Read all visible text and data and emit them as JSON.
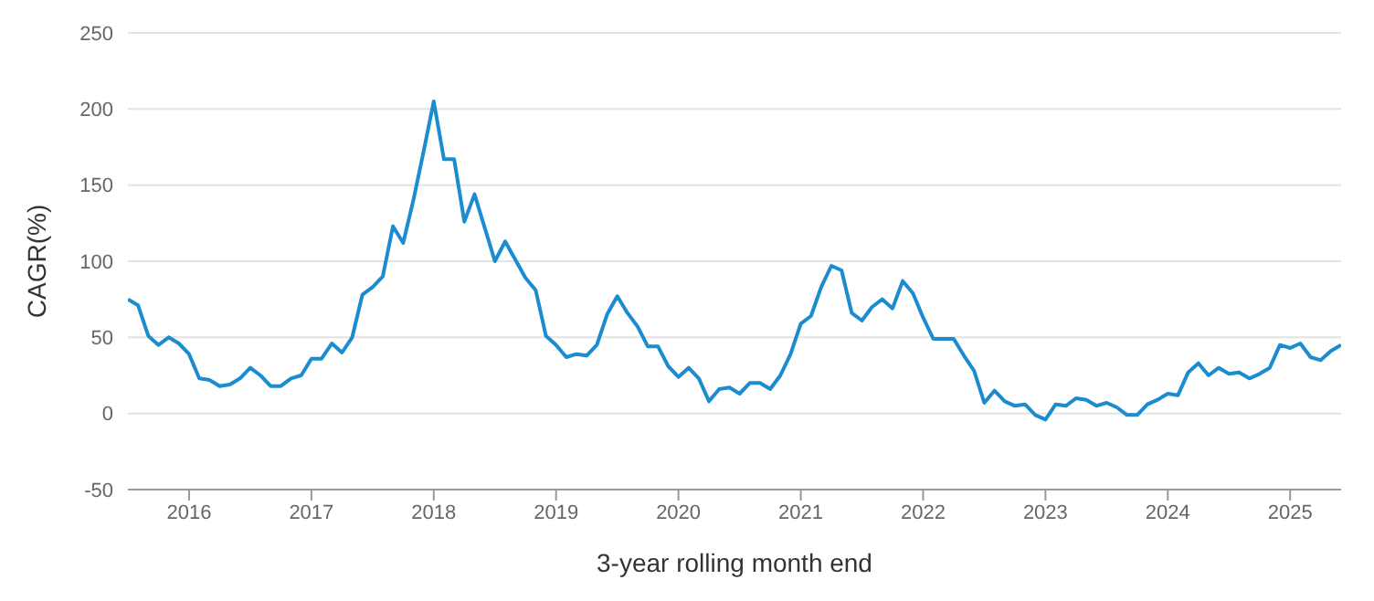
{
  "chart_data": {
    "type": "line",
    "xlabel": "3-year rolling month end",
    "ylabel": "CAGR(%)",
    "x": [
      "2015-07",
      "2015-08",
      "2015-09",
      "2015-10",
      "2015-11",
      "2015-12",
      "2016-01",
      "2016-02",
      "2016-03",
      "2016-04",
      "2016-05",
      "2016-06",
      "2016-07",
      "2016-08",
      "2016-09",
      "2016-10",
      "2016-11",
      "2016-12",
      "2017-01",
      "2017-02",
      "2017-03",
      "2017-04",
      "2017-05",
      "2017-06",
      "2017-07",
      "2017-08",
      "2017-09",
      "2017-10",
      "2017-11",
      "2017-12",
      "2018-01",
      "2018-02",
      "2018-03",
      "2018-04",
      "2018-05",
      "2018-06",
      "2018-07",
      "2018-08",
      "2018-09",
      "2018-10",
      "2018-11",
      "2018-12",
      "2019-01",
      "2019-02",
      "2019-03",
      "2019-04",
      "2019-05",
      "2019-06",
      "2019-07",
      "2019-08",
      "2019-09",
      "2019-10",
      "2019-11",
      "2019-12",
      "2020-01",
      "2020-02",
      "2020-03",
      "2020-04",
      "2020-05",
      "2020-06",
      "2020-07",
      "2020-08",
      "2020-09",
      "2020-10",
      "2020-11",
      "2020-12",
      "2021-01",
      "2021-02",
      "2021-03",
      "2021-04",
      "2021-05",
      "2021-06",
      "2021-07",
      "2021-08",
      "2021-09",
      "2021-10",
      "2021-11",
      "2021-12",
      "2022-01",
      "2022-02",
      "2022-03",
      "2022-04",
      "2022-05",
      "2022-06",
      "2022-07",
      "2022-08",
      "2022-09",
      "2022-10",
      "2022-11",
      "2022-12",
      "2023-01",
      "2023-02",
      "2023-03",
      "2023-04",
      "2023-05",
      "2023-06",
      "2023-07",
      "2023-08",
      "2023-09",
      "2023-10",
      "2023-11",
      "2023-12",
      "2024-01",
      "2024-02",
      "2024-03",
      "2024-04",
      "2024-05",
      "2024-06",
      "2024-07",
      "2024-08",
      "2024-09",
      "2024-10",
      "2024-11",
      "2024-12",
      "2025-01",
      "2025-02",
      "2025-03",
      "2025-04",
      "2025-05",
      "2025-06"
    ],
    "series": [
      {
        "color": "#1a8ccf",
        "values": [
          75,
          71,
          51,
          45,
          50,
          46,
          39,
          23,
          22,
          18,
          19,
          23,
          30,
          25,
          18,
          18,
          23,
          25,
          36,
          36,
          46,
          40,
          50,
          78,
          83,
          90,
          123,
          112,
          140,
          172,
          205,
          167,
          167,
          126,
          144,
          122,
          100,
          113,
          101,
          89,
          81,
          51,
          45,
          37,
          39,
          38,
          45,
          65,
          77,
          66,
          57,
          44,
          44,
          31,
          24,
          30,
          23,
          8,
          16,
          17,
          13,
          20,
          20,
          16,
          25,
          39,
          59,
          64,
          83,
          97,
          94,
          66,
          61,
          70,
          75,
          69,
          87,
          79,
          63,
          49,
          49,
          49,
          38,
          28,
          7,
          15,
          8,
          5,
          6,
          -1,
          -4,
          6,
          5,
          10,
          9,
          5,
          7,
          4,
          -1,
          -1,
          6,
          9,
          13,
          12,
          27,
          33,
          25,
          30,
          26,
          27,
          23,
          26,
          30,
          45,
          43,
          46,
          37,
          35,
          41,
          45
        ]
      }
    ],
    "xlim": [
      "2015-07",
      "2025-06"
    ],
    "xticks": [
      "2016",
      "2017",
      "2018",
      "2019",
      "2020",
      "2021",
      "2022",
      "2023",
      "2024",
      "2025"
    ],
    "ylim": [
      -50,
      250
    ],
    "yticks": [
      -50,
      0,
      50,
      100,
      150,
      200,
      250
    ],
    "grid": "y",
    "marker": "none",
    "line_style": "solid"
  }
}
